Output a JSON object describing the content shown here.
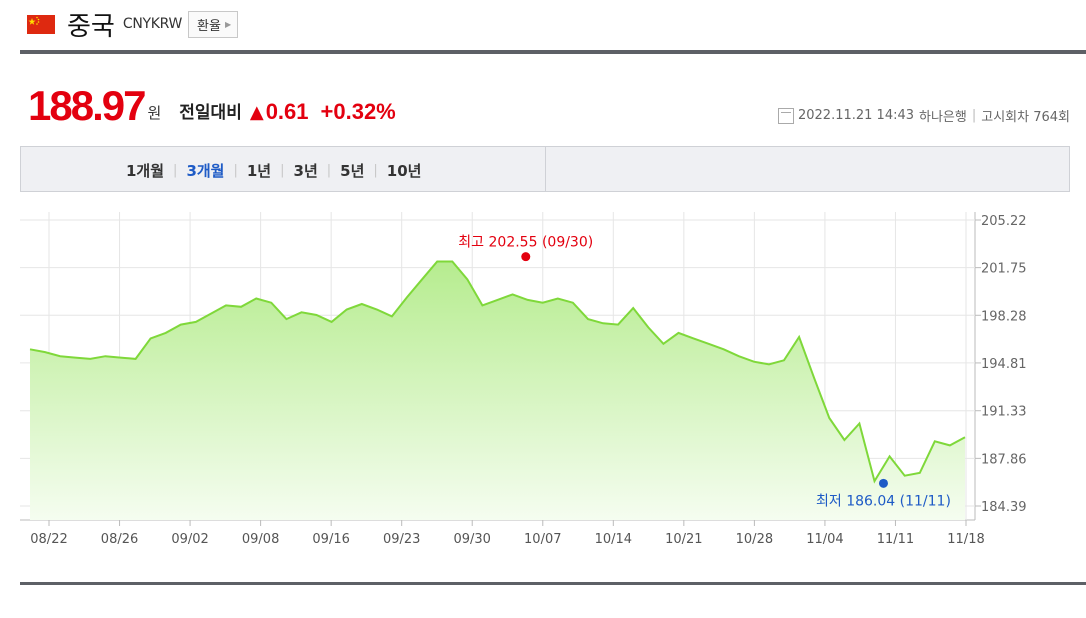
{
  "header": {
    "country": "중국",
    "code": "CNYKRW",
    "exchange_label": "환율"
  },
  "quote": {
    "price": "188.97",
    "unit": "원",
    "vs_label": "전일대비",
    "direction_icon": "up-triangle",
    "change": "0.61",
    "change_pct": "+0.32%"
  },
  "meta": {
    "datetime": "2022.11.21 14:43",
    "bank": "하나은행",
    "round": "고시회차 764회"
  },
  "tabs": [
    {
      "label": "1개월",
      "active": false
    },
    {
      "label": "3개월",
      "active": true
    },
    {
      "label": "1년",
      "active": false
    },
    {
      "label": "3년",
      "active": false
    },
    {
      "label": "5년",
      "active": false
    },
    {
      "label": "10년",
      "active": false
    }
  ],
  "colors": {
    "up": "#e3000f",
    "active_tab": "#1e5bc6",
    "line": "#7fd83a",
    "low": "#1e5bc6"
  },
  "chart_data": {
    "type": "area",
    "x_ticks": [
      "08/22",
      "08/26",
      "09/02",
      "09/08",
      "09/16",
      "09/23",
      "09/30",
      "10/07",
      "10/14",
      "10/21",
      "10/28",
      "11/04",
      "11/11",
      "11/18"
    ],
    "y_ticks": [
      "205.22",
      "201.75",
      "198.28",
      "194.81",
      "191.33",
      "187.86",
      "184.39"
    ],
    "ylim": [
      184.39,
      205.22
    ],
    "grid": true,
    "max_label": "최고 202.55 (09/30)",
    "min_label": "최저 186.04 (11/11)",
    "max": {
      "date": "09/30",
      "value": 202.55
    },
    "min": {
      "date": "11/11",
      "value": 186.04
    },
    "values": [
      195.8,
      195.6,
      195.3,
      195.2,
      195.1,
      195.3,
      195.2,
      195.1,
      196.6,
      197.0,
      197.6,
      197.8,
      198.4,
      199.0,
      198.9,
      199.5,
      199.2,
      198.0,
      198.5,
      198.3,
      197.8,
      198.7,
      199.1,
      198.7,
      198.2,
      199.6,
      200.9,
      202.2,
      202.2,
      200.9,
      199.0,
      199.4,
      199.8,
      199.4,
      199.2,
      199.5,
      199.2,
      198.0,
      197.7,
      197.6,
      198.8,
      197.4,
      196.2,
      197.0,
      196.6,
      196.2,
      195.8,
      195.3,
      194.9,
      194.7,
      195.0,
      196.7,
      193.7,
      190.8,
      189.2,
      190.4,
      186.2,
      188.0,
      186.6,
      186.8,
      189.1,
      188.8,
      189.4
    ]
  }
}
